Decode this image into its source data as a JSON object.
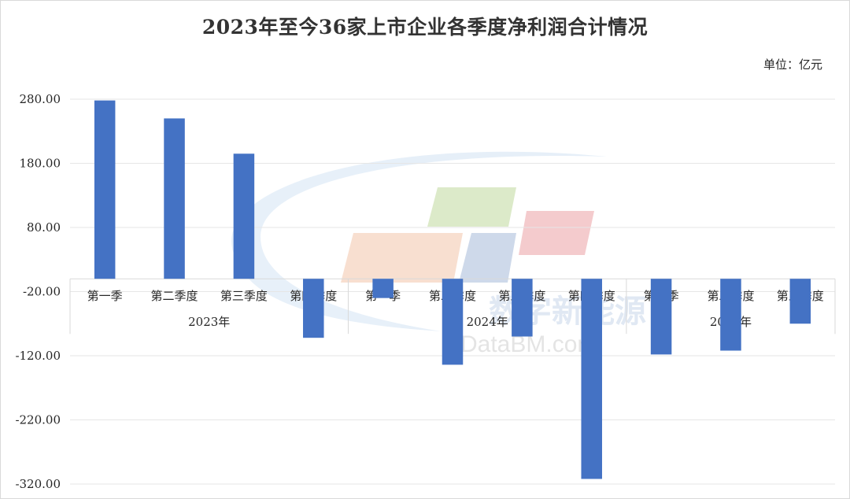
{
  "chart_data": {
    "type": "bar",
    "title": "2023年至今36家上市企业各季度净利润合计情况",
    "unit_label": "单位：亿元",
    "groups": [
      {
        "label": "2023年",
        "categories": [
          "第一季",
          "第二季度",
          "第三季度",
          "第四季度"
        ]
      },
      {
        "label": "2024年",
        "categories": [
          "第一季",
          "第二季度",
          "第三季度",
          "第四季度"
        ]
      },
      {
        "label": "2025年",
        "categories": [
          "第一季",
          "第二季度",
          "第三季度"
        ]
      }
    ],
    "values": [
      278,
      250,
      195,
      -92,
      -30,
      -134,
      -90,
      -312,
      -118,
      -112,
      -70
    ],
    "ylim": [
      -320,
      280
    ],
    "yticks": [
      "280.00",
      "180.00",
      "80.00",
      "-20.00",
      "-120.00",
      "-220.00",
      "-320.00"
    ],
    "ytick_values": [
      280,
      180,
      80,
      -20,
      -120,
      -220,
      -320
    ],
    "bar_color": "#4472C4",
    "grid": true,
    "legend": "none"
  },
  "watermark": {
    "text": "数字新能源",
    "subtext": "DataBM.com"
  }
}
